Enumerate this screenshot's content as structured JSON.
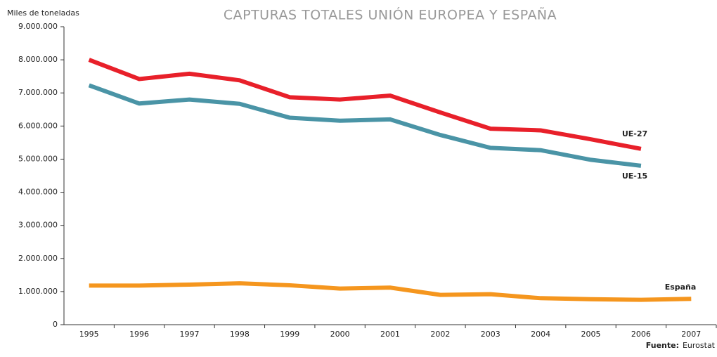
{
  "chart_data": {
    "type": "line",
    "title": "CAPTURAS TOTALES UNIÓN EUROPEA Y ESPAÑA",
    "y_label": "Miles de toneladas",
    "source_label": "Fuente:",
    "source": "Eurostat",
    "categories": [
      "1995",
      "1996",
      "1997",
      "1998",
      "1999",
      "2000",
      "2001",
      "2002",
      "2003",
      "2004",
      "2005",
      "2006",
      "2007"
    ],
    "series": [
      {
        "name": "UE-27",
        "color": "#e8202a",
        "values": [
          8000000,
          7420000,
          7580000,
          7380000,
          6870000,
          6800000,
          6920000,
          6410000,
          5920000,
          5870000,
          5600000,
          5310000,
          null
        ]
      },
      {
        "name": "UE-15",
        "color": "#4a94a6",
        "values": [
          7230000,
          6680000,
          6800000,
          6670000,
          6250000,
          6160000,
          6200000,
          5730000,
          5340000,
          5270000,
          4980000,
          4800000,
          null
        ]
      },
      {
        "name": "España",
        "color": "#f5961e",
        "values": [
          1180000,
          1180000,
          1210000,
          1250000,
          1190000,
          1090000,
          1120000,
          900000,
          920000,
          800000,
          770000,
          750000,
          780000
        ]
      }
    ],
    "ylim": [
      0,
      9000000
    ],
    "yticks": [
      0,
      {
        "value": 1000000,
        "label": "1.000.000"
      },
      {
        "value": 2000000,
        "label": "2.000.000"
      },
      {
        "value": 3000000,
        "label": "3.000.000"
      },
      {
        "value": 4000000,
        "label": "4.000.000"
      },
      {
        "value": 5000000,
        "label": "5.000.000"
      },
      {
        "value": 6000000,
        "label": "6.000.000"
      },
      {
        "value": 7000000,
        "label": "7.000.000"
      },
      {
        "value": 8000000,
        "label": "8.000.000"
      },
      {
        "value": 9000000,
        "label": "9.000.000"
      }
    ],
    "grid": false
  }
}
